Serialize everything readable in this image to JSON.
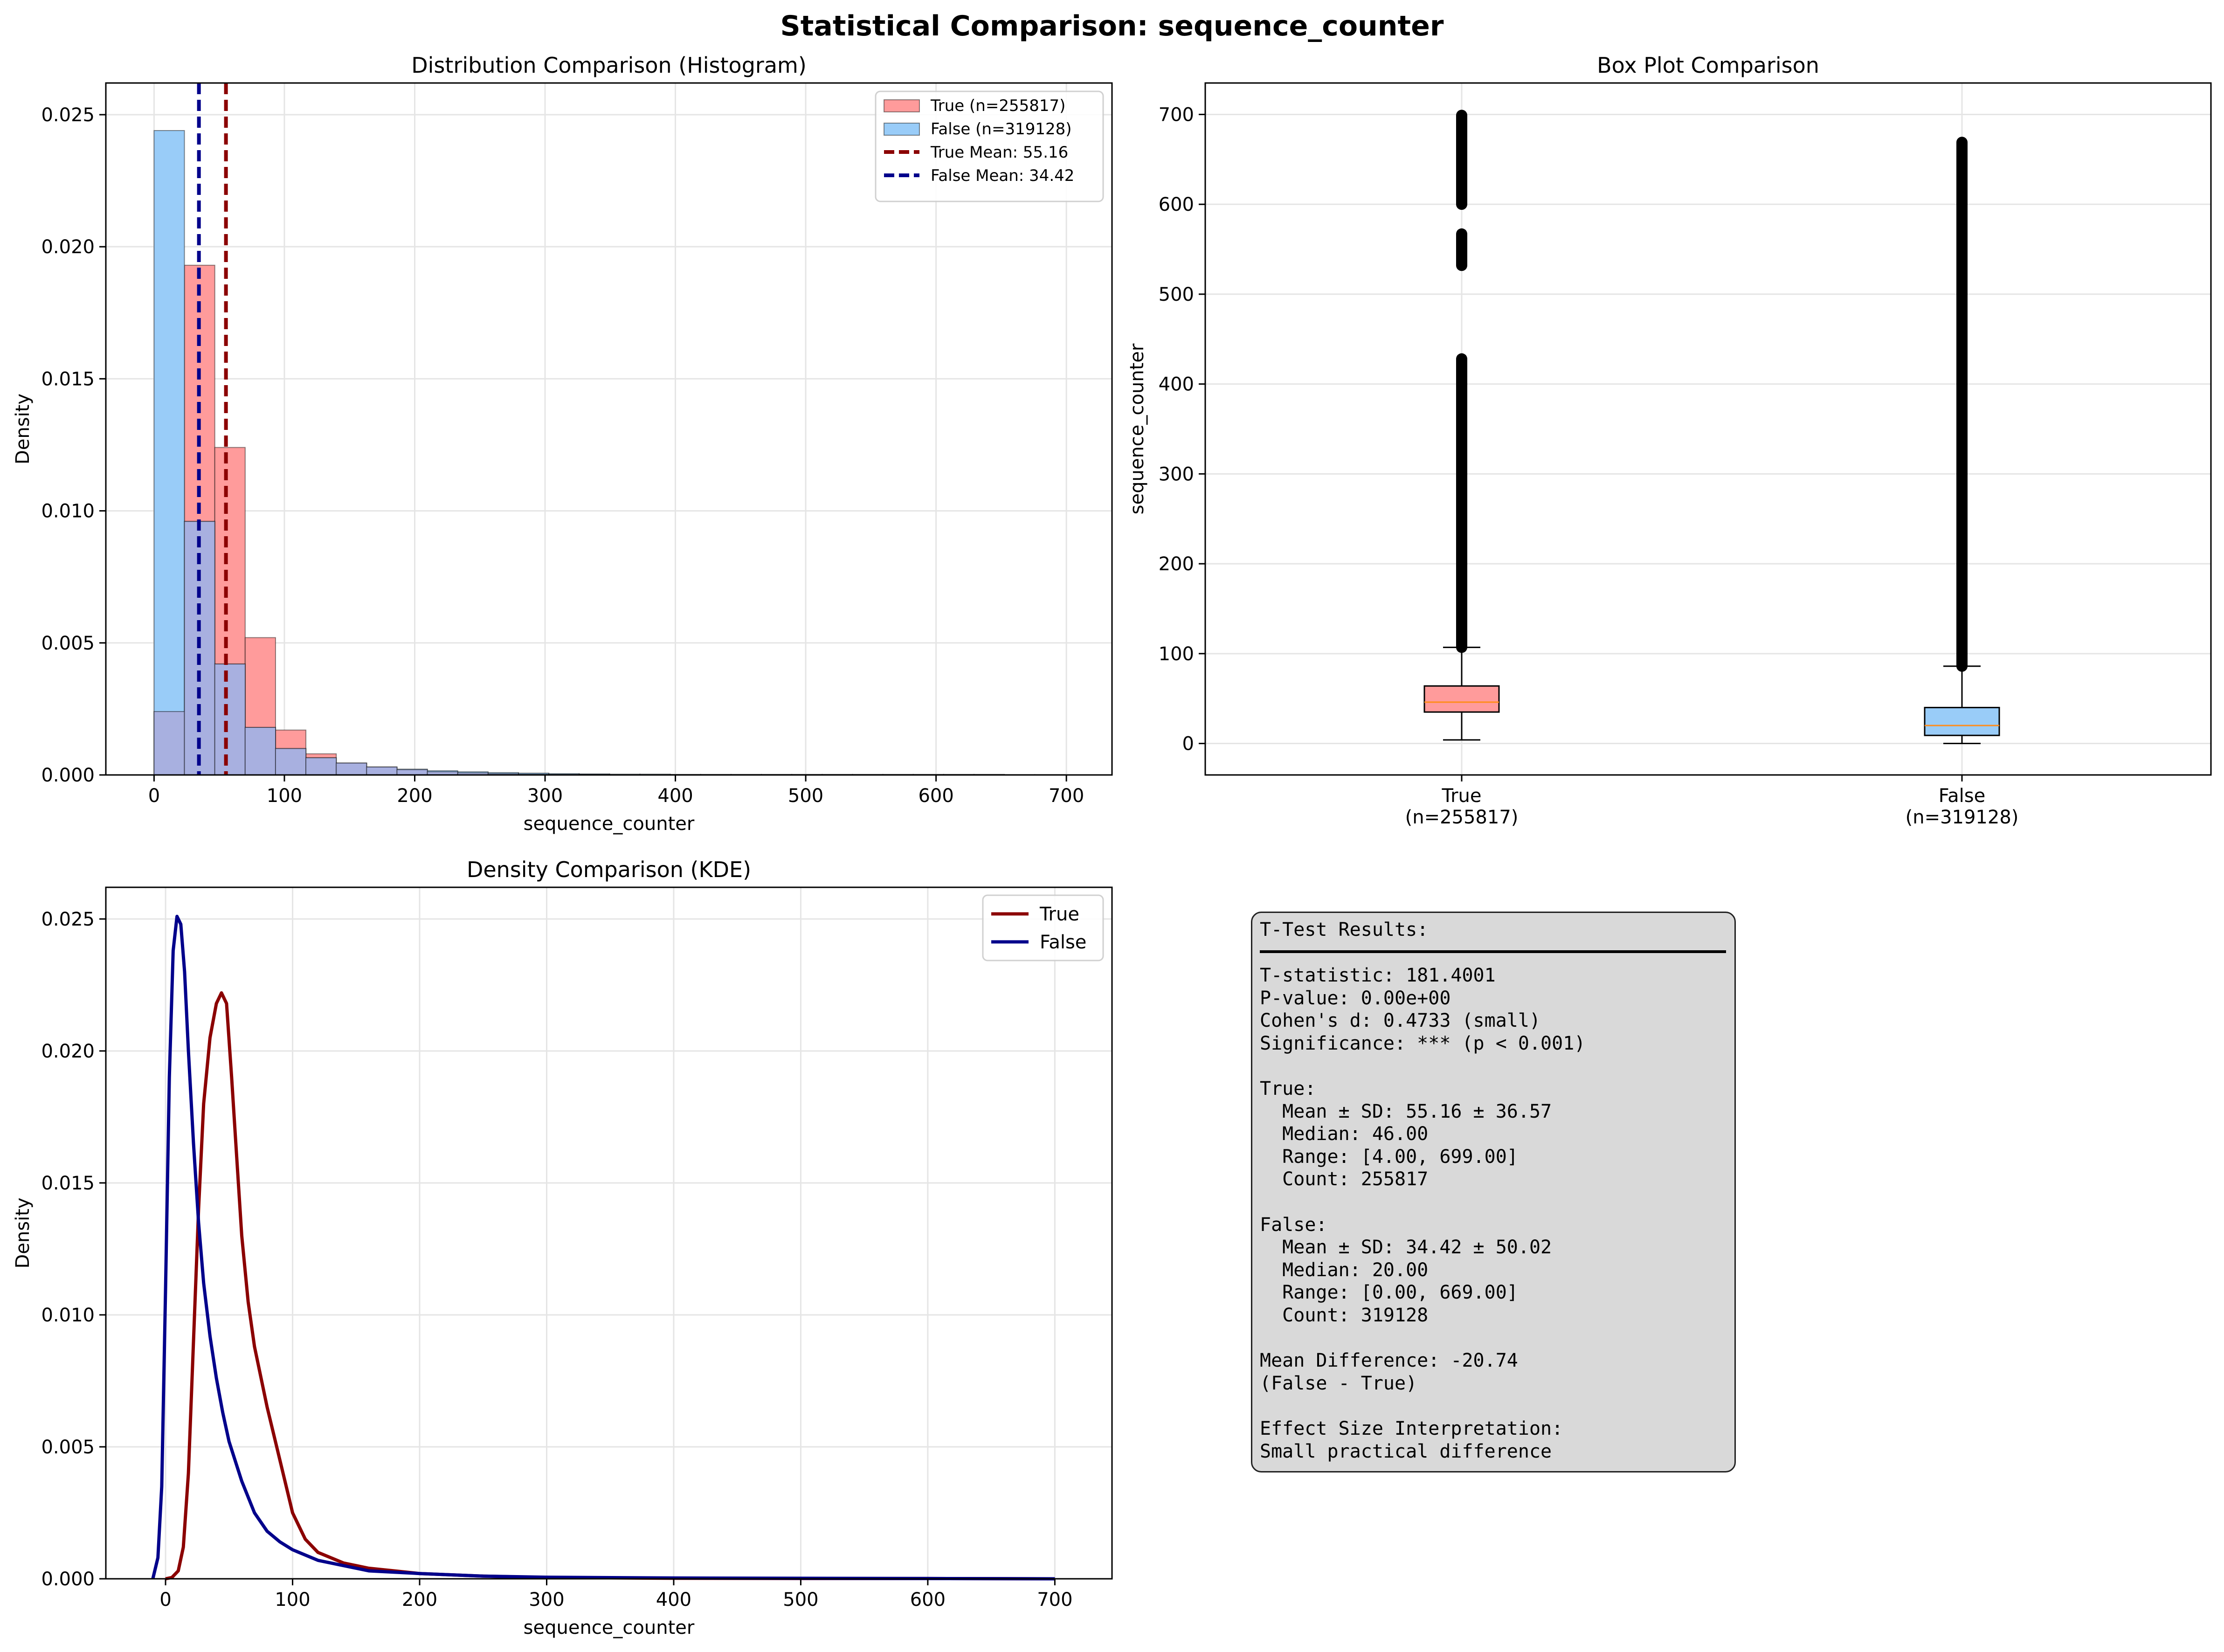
{
  "figure": {
    "title": "Statistical Comparison: sequence_counter"
  },
  "colors": {
    "true_fill": "#ff9b9b",
    "false_fill": "#99ccf8",
    "overlap_fill": "#a8b0e0",
    "true_line": "#8b0000",
    "false_line": "#00008b",
    "median_line": "#ff8c1a",
    "grid": "#e5e5e5"
  },
  "chart_data": [
    {
      "type": "bar",
      "subtype": "histogram",
      "title": "Distribution Comparison (Histogram)",
      "xlabel": "sequence_counter",
      "ylabel": "Density",
      "xlim": [
        -37,
        735
      ],
      "ylim": [
        0,
        0.0262
      ],
      "xticks": [
        0,
        100,
        200,
        300,
        400,
        500,
        600,
        700
      ],
      "yticks": [
        0.0,
        0.005,
        0.01,
        0.015,
        0.02,
        0.025
      ],
      "ytick_labels": [
        "0.000",
        "0.005",
        "0.010",
        "0.015",
        "0.020",
        "0.025"
      ],
      "grid": true,
      "legend_position": "top-right",
      "series": [
        {
          "name": "True (n=255817)",
          "bin_edges": [
            0,
            23.3,
            46.6,
            69.9,
            93.2,
            116.5,
            139.8,
            163.1,
            186.4,
            209.7,
            233.0,
            256.3,
            279.6,
            302.9,
            326.2,
            349.5,
            372.8,
            396.1,
            419.4,
            442.7,
            466.0,
            489.3,
            512.6,
            535.9,
            559.2,
            582.5,
            605.8,
            629.1,
            652.4,
            675.7,
            699.0
          ],
          "values": [
            0.0024,
            0.0193,
            0.0124,
            0.0052,
            0.0017,
            0.0008,
            0.00045,
            0.0003,
            0.0002,
            0.00012,
            8e-05,
            5e-05,
            3e-05,
            2e-05,
            2e-05,
            1e-05,
            1e-05,
            1e-05,
            1e-05,
            1e-05,
            1e-05,
            1e-05,
            1e-05,
            1e-05,
            1e-05,
            1e-05,
            1e-05,
            1e-05,
            1e-05,
            1e-05
          ]
        },
        {
          "name": "False (n=319128)",
          "bin_edges": [
            0,
            23.3,
            46.6,
            69.9,
            93.2,
            116.5,
            139.8,
            163.1,
            186.4,
            209.7,
            233.0,
            256.3,
            279.6,
            302.9,
            326.2,
            349.5,
            372.8,
            396.1,
            419.4,
            442.7,
            466.0,
            489.3,
            512.6,
            535.9,
            559.2,
            582.5,
            605.8,
            629.1,
            652.4,
            675.7,
            699.0
          ],
          "values": [
            0.0244,
            0.0096,
            0.0042,
            0.0018,
            0.001,
            0.00065,
            0.00045,
            0.0003,
            0.00022,
            0.00016,
            0.00012,
            9e-05,
            7e-05,
            5e-05,
            4e-05,
            3e-05,
            3e-05,
            2e-05,
            2e-05,
            2e-05,
            2e-05,
            2e-05,
            2e-05,
            2e-05,
            2e-05,
            2e-05,
            2e-05,
            2e-05,
            1e-05,
            1e-05
          ]
        }
      ],
      "vlines": [
        {
          "name": "True Mean: 55.16",
          "x": 55.16
        },
        {
          "name": "False Mean: 34.42",
          "x": 34.42
        }
      ]
    },
    {
      "type": "box",
      "title": "Box Plot Comparison",
      "ylabel": "sequence_counter",
      "ylim": [
        -35,
        735
      ],
      "yticks": [
        0,
        100,
        200,
        300,
        400,
        500,
        600,
        700
      ],
      "grid": true,
      "categories": [
        "True\n(n=255817)",
        "False\n(n=319128)"
      ],
      "category_lines": [
        [
          "True",
          "(n=255817)"
        ],
        [
          "False",
          "(n=319128)"
        ]
      ],
      "boxes": [
        {
          "name": "True",
          "whisker_low": 4,
          "q1": 35,
          "median": 46,
          "q3": 64,
          "whisker_high": 107,
          "outliers_ranges": [
            [
              107,
              428
            ],
            [
              532,
              567
            ],
            [
              600,
              699
            ]
          ]
        },
        {
          "name": "False",
          "whisker_low": 0,
          "q1": 9,
          "median": 20,
          "q3": 40,
          "whisker_high": 86,
          "outliers_ranges": [
            [
              86,
              669
            ]
          ]
        }
      ]
    },
    {
      "type": "line",
      "subtype": "kde",
      "title": "Density Comparison (KDE)",
      "xlabel": "sequence_counter",
      "ylabel": "Density",
      "xlim": [
        -47,
        745
      ],
      "ylim": [
        0,
        0.0262
      ],
      "xticks": [
        0,
        100,
        200,
        300,
        400,
        500,
        600,
        700
      ],
      "yticks": [
        0.0,
        0.005,
        0.01,
        0.015,
        0.02,
        0.025
      ],
      "ytick_labels": [
        "0.000",
        "0.005",
        "0.010",
        "0.015",
        "0.020",
        "0.025"
      ],
      "grid": true,
      "legend_position": "top-right",
      "series": [
        {
          "name": "True",
          "x": [
            0,
            5,
            10,
            14,
            18,
            22,
            26,
            30,
            35,
            40,
            44,
            48,
            52,
            56,
            60,
            65,
            70,
            80,
            90,
            100,
            110,
            120,
            140,
            160,
            180,
            200,
            250,
            300,
            400,
            500,
            600,
            700
          ],
          "y": [
            0.0,
            5e-05,
            0.0003,
            0.0012,
            0.004,
            0.009,
            0.014,
            0.018,
            0.0205,
            0.0218,
            0.0222,
            0.0218,
            0.019,
            0.016,
            0.013,
            0.0105,
            0.0088,
            0.0065,
            0.0045,
            0.0025,
            0.0015,
            0.001,
            0.0006,
            0.0004,
            0.0003,
            0.0002,
            0.0001,
            5e-05,
            2e-05,
            1e-05,
            1e-05,
            0.0
          ]
        },
        {
          "name": "False",
          "x": [
            -10,
            -6,
            -3,
            0,
            3,
            6,
            9,
            12,
            15,
            18,
            22,
            26,
            30,
            35,
            40,
            45,
            50,
            60,
            70,
            80,
            90,
            100,
            120,
            140,
            160,
            200,
            250,
            300,
            400,
            500,
            600,
            700
          ],
          "y": [
            0.0,
            0.0008,
            0.0035,
            0.011,
            0.019,
            0.0238,
            0.0251,
            0.0248,
            0.023,
            0.02,
            0.0165,
            0.0135,
            0.0112,
            0.0092,
            0.0076,
            0.0063,
            0.0052,
            0.0037,
            0.0025,
            0.0018,
            0.0014,
            0.0011,
            0.0007,
            0.0005,
            0.0003,
            0.0002,
            0.0001,
            6e-05,
            3e-05,
            2e-05,
            1e-05,
            0.0
          ]
        }
      ]
    }
  ],
  "stats": {
    "lines": [
      "T-Test Results:",
      "T-statistic: 181.4001",
      "P-value: 0.00e+00",
      "Cohen's d: 0.4733 (small)",
      "Significance: *** (p < 0.001)",
      "",
      "True:",
      "  Mean ± SD: 55.16 ± 36.57",
      "  Median: 46.00",
      "  Range: [4.00, 699.00]",
      "  Count: 255817",
      "",
      "False:",
      "  Mean ± SD: 34.42 ± 50.02",
      "  Median: 20.00",
      "  Range: [0.00, 669.00]",
      "  Count: 319128",
      "",
      "Mean Difference: -20.74",
      "(False - True)",
      "",
      "Effect Size Interpretation:",
      "Small practical difference"
    ]
  }
}
